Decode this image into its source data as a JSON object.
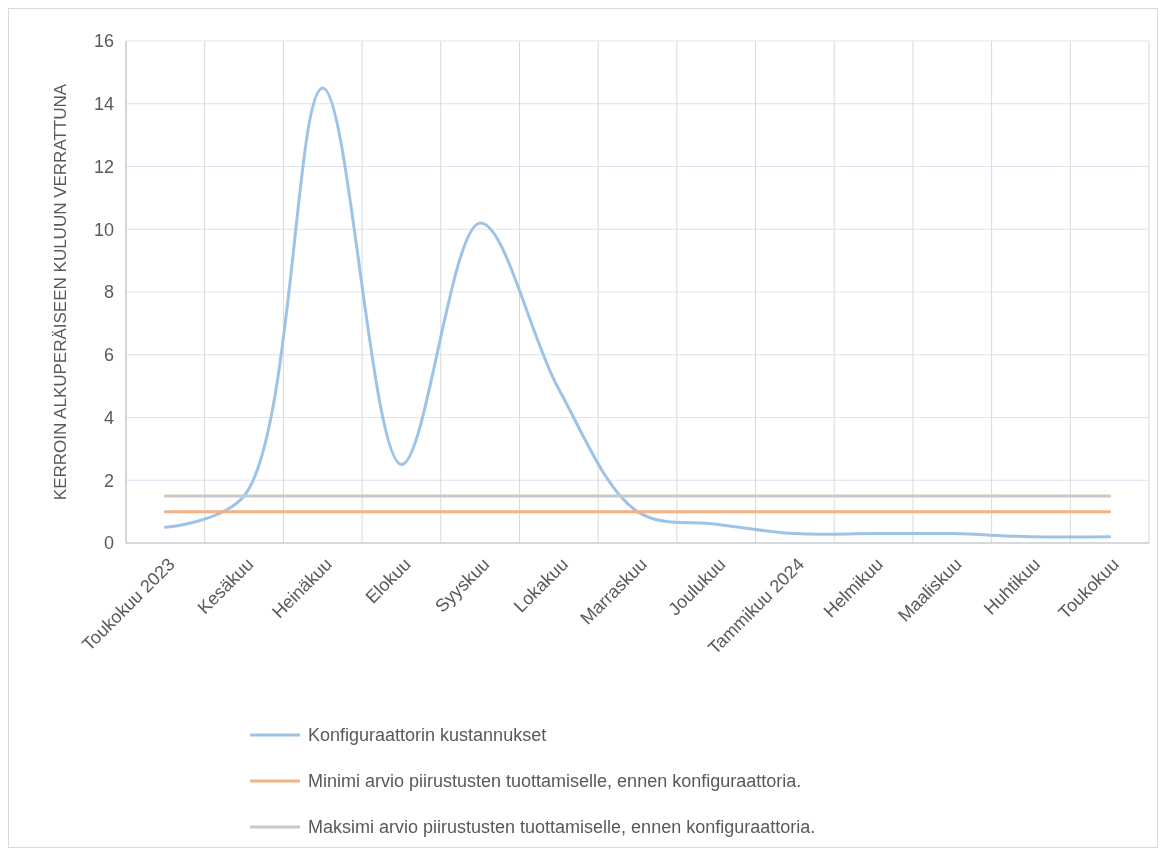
{
  "chart_data": {
    "type": "line",
    "ylabel": "KERROIN ALKUPERÄISEEN KULUUN VERRATTUNA",
    "categories": [
      "Toukokuu 2023",
      "Kesäkuu",
      "Heinäkuu",
      "Elokuu",
      "Syyskuu",
      "Lokakuu",
      "Marraskuu",
      "Joulukuu",
      "Tammikuu 2024",
      "Helmikuu",
      "Maaliskuu",
      "Huhtikuu",
      "Toukokuu"
    ],
    "series": [
      {
        "name": "Konfiguraattorin kustannukset",
        "color": "#9dc3e6",
        "values": [
          0.5,
          1.5,
          14.5,
          2.5,
          10.2,
          4.9,
          1.0,
          0.6,
          0.3,
          0.3,
          0.3,
          0.2,
          0.2
        ]
      },
      {
        "name": "Minimi arvio piirustusten tuottamiselle, ennen konfiguraattoria.",
        "color": "#f4b183",
        "values": [
          1,
          1,
          1,
          1,
          1,
          1,
          1,
          1,
          1,
          1,
          1,
          1,
          1
        ]
      },
      {
        "name": "Maksimi arvio piirustusten tuottamiselle, ennen konfiguraattoria.",
        "color": "#c9c9c9",
        "values": [
          1.5,
          1.5,
          1.5,
          1.5,
          1.5,
          1.5,
          1.5,
          1.5,
          1.5,
          1.5,
          1.5,
          1.5,
          1.5
        ]
      }
    ],
    "ylim": [
      0,
      16
    ],
    "yticks": [
      0,
      2,
      4,
      6,
      8,
      10,
      12,
      14,
      16
    ],
    "grid": true,
    "legend": "bottom",
    "marker": "none",
    "line_style": "solid"
  }
}
